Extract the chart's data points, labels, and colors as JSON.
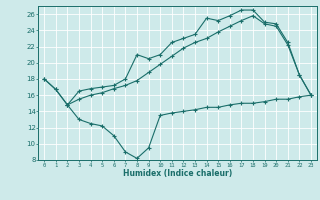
{
  "xlabel": "Humidex (Indice chaleur)",
  "background_color": "#ceeaea",
  "grid_color": "#ffffff",
  "line_color": "#1a6e6a",
  "xlim": [
    -0.5,
    23.5
  ],
  "ylim": [
    8,
    27
  ],
  "xticks": [
    0,
    1,
    2,
    3,
    4,
    5,
    6,
    7,
    8,
    9,
    10,
    11,
    12,
    13,
    14,
    15,
    16,
    17,
    18,
    19,
    20,
    21,
    22,
    23
  ],
  "yticks": [
    8,
    10,
    12,
    14,
    16,
    18,
    20,
    22,
    24,
    26
  ],
  "line1_x": [
    0,
    1,
    2,
    3,
    4,
    5,
    6,
    7,
    8,
    9,
    10,
    11,
    12,
    13,
    14,
    15,
    16,
    17,
    18,
    19,
    20,
    21,
    22,
    23
  ],
  "line1_y": [
    18.0,
    16.7,
    14.8,
    16.5,
    16.8,
    17.0,
    17.2,
    18.0,
    21.0,
    20.5,
    21.0,
    22.5,
    23.0,
    23.5,
    25.5,
    25.2,
    25.8,
    26.5,
    26.5,
    25.0,
    24.8,
    22.5,
    18.5,
    16.0
  ],
  "line2_x": [
    0,
    1,
    2,
    3,
    4,
    5,
    6,
    7,
    8,
    9,
    10,
    11,
    12,
    13,
    14,
    15,
    16,
    17,
    18,
    19,
    20,
    21,
    22,
    23
  ],
  "line2_y": [
    18.0,
    16.7,
    14.8,
    15.5,
    16.0,
    16.3,
    16.8,
    17.2,
    17.8,
    18.8,
    19.8,
    20.8,
    21.8,
    22.5,
    23.0,
    23.8,
    24.5,
    25.2,
    25.8,
    24.8,
    24.5,
    22.2,
    18.5,
    16.0
  ],
  "line3_x": [
    2,
    3,
    4,
    5,
    6,
    7,
    8,
    9,
    10,
    11,
    12,
    13,
    14,
    15,
    16,
    17,
    18,
    19,
    20,
    21,
    22,
    23
  ],
  "line3_y": [
    14.8,
    13.0,
    12.5,
    12.2,
    11.0,
    9.0,
    8.2,
    9.5,
    13.5,
    13.8,
    14.0,
    14.2,
    14.5,
    14.5,
    14.8,
    15.0,
    15.0,
    15.2,
    15.5,
    15.5,
    15.8,
    16.0
  ]
}
